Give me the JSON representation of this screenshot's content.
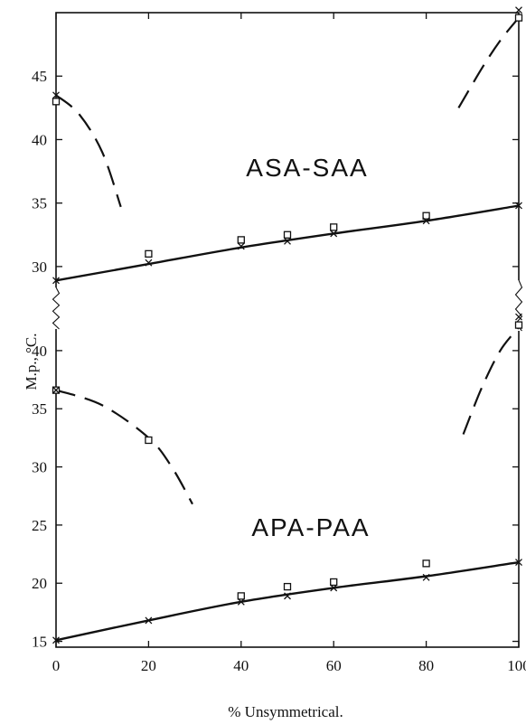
{
  "chart_data": {
    "type": "scatter",
    "xlabel": "% Unsymmetrical.",
    "ylabel": "M.p., °C.",
    "xlim": [
      0,
      100
    ],
    "x_ticks": [
      "0",
      "20",
      "40",
      "60",
      "80",
      "100"
    ],
    "grid": false,
    "markers": {
      "square": "□",
      "cross": "×"
    },
    "panels": [
      {
        "label": "ASA-SAA",
        "ylim": [
          27.5,
          50
        ],
        "y_ticks": [
          "30",
          "35",
          "40",
          "45"
        ],
        "series": [
          {
            "marker": "square",
            "points": [
              [
                0,
                43.0
              ],
              [
                20,
                31.0
              ],
              [
                40,
                32.1
              ],
              [
                50,
                32.5
              ],
              [
                60,
                33.1
              ],
              [
                80,
                34.0
              ],
              [
                100,
                49.6
              ]
            ]
          },
          {
            "marker": "cross",
            "points": [
              [
                0,
                43.5
              ],
              [
                0,
                28.9
              ],
              [
                20,
                30.3
              ],
              [
                40,
                31.6
              ],
              [
                50,
                32.0
              ],
              [
                60,
                32.6
              ],
              [
                80,
                33.6
              ],
              [
                100,
                34.8
              ],
              [
                100,
                50.2
              ]
            ]
          }
        ],
        "solid_curves": [
          [
            [
              0,
              28.9
            ],
            [
              20,
              30.2
            ],
            [
              40,
              31.5
            ],
            [
              60,
              32.6
            ],
            [
              80,
              33.6
            ],
            [
              100,
              34.8
            ]
          ]
        ],
        "dashed_curves": [
          [
            [
              0,
              43.5
            ],
            [
              5,
              42.0
            ],
            [
              10,
              39.0
            ],
            [
              14,
              34.7
            ]
          ],
          [
            [
              87,
              42.5
            ],
            [
              92,
              45.6
            ],
            [
              96,
              47.8
            ],
            [
              100,
              49.6
            ]
          ]
        ]
      },
      {
        "label": "APA-PAA",
        "ylim": [
          14.5,
          44.5
        ],
        "y_ticks": [
          "15",
          "20",
          "25",
          "30",
          "35",
          "40"
        ],
        "series": [
          {
            "marker": "square",
            "points": [
              [
                0,
                36.6
              ],
              [
                20,
                32.3
              ],
              [
                40,
                18.9
              ],
              [
                50,
                19.7
              ],
              [
                60,
                20.1
              ],
              [
                80,
                21.7
              ],
              [
                100,
                42.2
              ]
            ]
          },
          {
            "marker": "cross",
            "points": [
              [
                0,
                36.6
              ],
              [
                0,
                15.1
              ],
              [
                20,
                16.8
              ],
              [
                40,
                18.4
              ],
              [
                50,
                18.9
              ],
              [
                60,
                19.6
              ],
              [
                80,
                20.5
              ],
              [
                100,
                21.8
              ],
              [
                100,
                42.9
              ]
            ]
          }
        ],
        "solid_curves": [
          [
            [
              0,
              15.1
            ],
            [
              20,
              16.8
            ],
            [
              40,
              18.4
            ],
            [
              60,
              19.6
            ],
            [
              80,
              20.6
            ],
            [
              100,
              21.8
            ]
          ]
        ],
        "dashed_curves": [
          [
            [
              0,
              36.6
            ],
            [
              10,
              35.3
            ],
            [
              20,
              32.5
            ],
            [
              25,
              30.0
            ],
            [
              29.5,
              26.8
            ]
          ],
          [
            [
              88,
              32.8
            ],
            [
              92,
              36.8
            ],
            [
              96,
              40.0
            ],
            [
              100,
              42.0
            ]
          ]
        ]
      }
    ]
  }
}
